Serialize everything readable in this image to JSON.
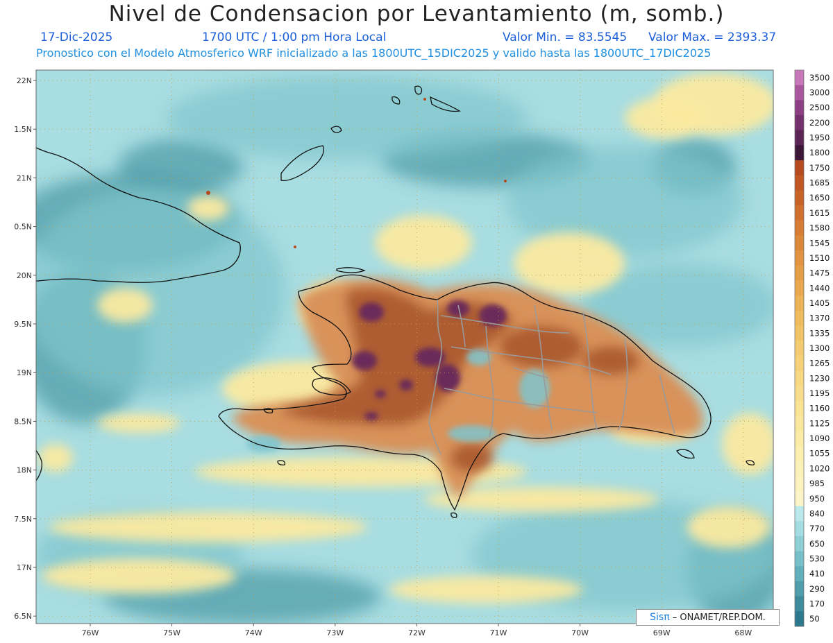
{
  "header": {
    "title": "Nivel de Condensacion por Levantamiento (m, somb.)",
    "date": "17-Dic-2025",
    "time": "1700 UTC / 1:00 pm Hora Local",
    "min_label": "Valor Min. = 83.5545",
    "max_label": "Valor Max. = 2393.37",
    "forecast": "Pronostico con el Modelo Atmosferico WRF inicializado a las 1800UTC_15DIC2025 y valido hasta las  1800UTC_17DIC2025"
  },
  "map": {
    "lat_labels": [
      "22N",
      "1.5N",
      "21N",
      "0.5N",
      "20N",
      "9.5N",
      "19N",
      "8.5N",
      "18N",
      "7.5N",
      "17N",
      "6.5N"
    ],
    "lon_labels": [
      "76W",
      "75W",
      "74W",
      "73W",
      "72W",
      "71W",
      "70W",
      "69W",
      "68W"
    ],
    "colors": {
      "ocean_light": "#a8dde2",
      "ocean_mid": "#7fc4cc",
      "ocean_dark": "#4f9ca8",
      "pale_yellow": "#fbe9a0",
      "land_orange": "#d8925a",
      "land_brown": "#a8582e",
      "land_purple": "#6a2a5a"
    }
  },
  "colorbar": {
    "labels": [
      "3500",
      "3000",
      "2500",
      "2200",
      "1950",
      "1800",
      "1750",
      "1685",
      "1650",
      "1615",
      "1580",
      "1545",
      "1510",
      "1475",
      "1440",
      "1405",
      "1370",
      "1335",
      "1300",
      "1265",
      "1230",
      "1195",
      "1160",
      "1125",
      "1090",
      "1055",
      "1020",
      "985",
      "950",
      "840",
      "770",
      "650",
      "530",
      "410",
      "290",
      "170",
      "50"
    ],
    "colors": [
      "#c678b8",
      "#a9579c",
      "#8c3f82",
      "#73306a",
      "#5a2454",
      "#3c1636",
      "#b44a1e",
      "#bf5623",
      "#c86328",
      "#d0702e",
      "#d67c34",
      "#dc883a",
      "#e19341",
      "#e59e48",
      "#e9a84f",
      "#ecb257",
      "#efbb5f",
      "#f1c367",
      "#f3cb70",
      "#f5d279",
      "#f7d883",
      "#f8de8c",
      "#f9e395",
      "#fae79e",
      "#fbeba6",
      "#fcefb0",
      "#fcf1b8",
      "#fdf3c0",
      "#fdf5c8",
      "#bce9ec",
      "#a3dde2",
      "#8ecfd6",
      "#78c0c9",
      "#63afbb",
      "#4f9dab",
      "#3e8b9c",
      "#2c788c"
    ]
  },
  "credit": {
    "brand": "Sisπ",
    "text": "– ONAMET/REP.DOM."
  }
}
